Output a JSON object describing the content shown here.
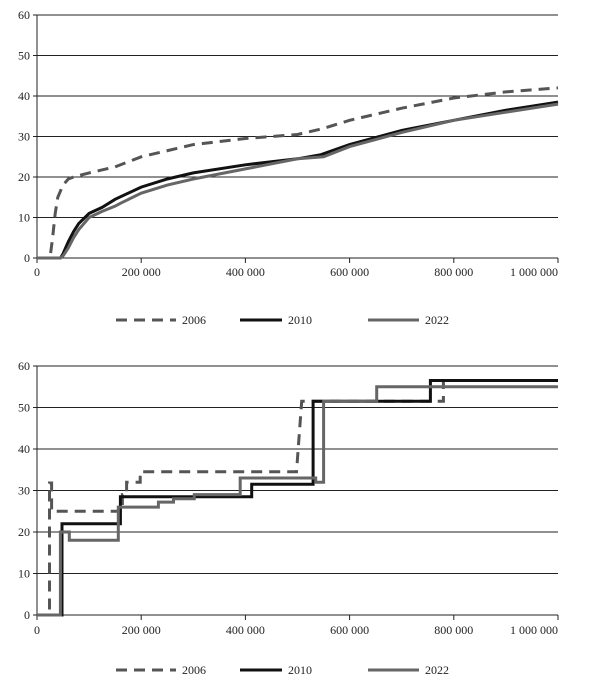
{
  "chart_data": [
    {
      "type": "line",
      "xlim": [
        0,
        1000000
      ],
      "ylim": [
        0,
        60
      ],
      "x_ticks": [
        0,
        200000,
        400000,
        600000,
        800000,
        1000000
      ],
      "x_tick_labels": [
        "0",
        "200 000",
        "400 000",
        "600 000",
        "800 000",
        "1 000 000"
      ],
      "y_ticks": [
        0,
        10,
        20,
        30,
        40,
        50,
        60
      ],
      "y_tick_labels": [
        "0",
        "10",
        "20",
        "30",
        "40",
        "50",
        "60"
      ],
      "grid": "horizontal",
      "legend_position": "bottom",
      "series": [
        {
          "name": "2006",
          "style": "dashed",
          "color": "#555555",
          "x": [
            0,
            25000,
            30000,
            35000,
            40000,
            50000,
            60000,
            70000,
            100000,
            150000,
            200000,
            300000,
            400000,
            500000,
            550000,
            600000,
            700000,
            800000,
            900000,
            1000000
          ],
          "y": [
            0,
            0,
            5,
            11,
            15,
            18,
            19.5,
            20,
            21,
            22.5,
            25,
            28,
            29.5,
            30.5,
            32,
            34,
            37,
            39.5,
            41,
            42
          ]
        },
        {
          "name": "2010",
          "style": "solid",
          "color": "#111111",
          "x": [
            0,
            45000,
            50000,
            60000,
            70000,
            80000,
            100000,
            125000,
            150000,
            200000,
            250000,
            300000,
            400000,
            500000,
            545000,
            600000,
            700000,
            800000,
            900000,
            1000000
          ],
          "y": [
            0,
            0,
            1,
            4,
            6.5,
            8.5,
            11,
            12.5,
            14.5,
            17.5,
            19.5,
            21,
            23,
            24.5,
            25.5,
            28,
            31.5,
            34,
            36.5,
            38.5
          ]
        },
        {
          "name": "2022",
          "style": "solid",
          "color": "#666666",
          "x": [
            0,
            45000,
            50000,
            60000,
            70000,
            80000,
            100000,
            125000,
            150000,
            160000,
            200000,
            250000,
            300000,
            400000,
            500000,
            550000,
            600000,
            700000,
            800000,
            900000,
            1000000
          ],
          "y": [
            0,
            0,
            0.5,
            2.5,
            5,
            7,
            10,
            11.5,
            12.8,
            13.5,
            16,
            18,
            19.5,
            22,
            24.5,
            25,
            27.5,
            31,
            34,
            36,
            38
          ]
        }
      ]
    },
    {
      "type": "line",
      "xlim": [
        0,
        1000000
      ],
      "ylim": [
        0,
        60
      ],
      "x_ticks": [
        0,
        200000,
        400000,
        600000,
        800000,
        1000000
      ],
      "x_tick_labels": [
        "0",
        "200 000",
        "400 000",
        "600 000",
        "800 000",
        "1 000 000"
      ],
      "y_ticks": [
        0,
        10,
        20,
        30,
        40,
        50,
        60
      ],
      "y_tick_labels": [
        "0",
        "10",
        "20",
        "30",
        "40",
        "50",
        "60"
      ],
      "grid": "horizontal",
      "legend_position": "bottom",
      "series": [
        {
          "name": "2006",
          "style": "dashed",
          "color": "#555555",
          "x": [
            0,
            24000,
            24000,
            28000,
            28000,
            60000,
            60000,
            164000,
            164000,
            172000,
            172000,
            198000,
            198000,
            498000,
            498000,
            508000,
            508000,
            780000,
            780000,
            1000000
          ],
          "y": [
            0,
            0,
            31.8,
            31.8,
            25,
            25,
            25,
            25,
            29,
            29,
            32,
            32,
            34.5,
            34.5,
            34.5,
            51.5,
            51.5,
            51.5,
            56.5,
            56.5
          ]
        },
        {
          "name": "2010",
          "style": "solid",
          "color": "#111111",
          "x": [
            0,
            48000,
            48000,
            52000,
            52000,
            160000,
            160000,
            412000,
            412000,
            530000,
            530000,
            535000,
            535000,
            755000,
            755000,
            1000000
          ],
          "y": [
            0,
            0,
            22,
            22,
            22,
            22,
            28.5,
            28.5,
            31.5,
            31.5,
            51.5,
            51.5,
            51.5,
            51.5,
            56.5,
            56.5
          ]
        },
        {
          "name": "2022",
          "style": "solid",
          "color": "#666666",
          "x": [
            0,
            45000,
            45000,
            62000,
            62000,
            156000,
            156000,
            233000,
            233000,
            262000,
            262000,
            302000,
            302000,
            390000,
            390000,
            535000,
            535000,
            550000,
            550000,
            652000,
            652000,
            760000,
            760000,
            1000000
          ],
          "y": [
            0,
            0,
            20,
            20,
            18,
            18,
            26,
            26,
            27.2,
            27.2,
            28,
            28,
            29,
            29,
            33,
            33,
            32,
            32,
            51.5,
            51.5,
            55,
            55,
            55,
            55
          ]
        }
      ]
    }
  ]
}
